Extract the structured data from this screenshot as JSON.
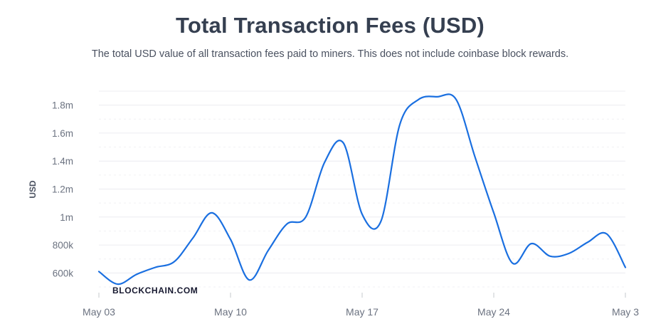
{
  "chart_data": {
    "type": "line",
    "title": "Total Transaction Fees (USD)",
    "subtitle": "The total USD value of all transaction fees paid to miners. This does not include coinbase block rewards.",
    "ylabel": "USD",
    "xlabel": "",
    "yticks": [
      "600k",
      "800k",
      "1m",
      "1.2m",
      "1.4m",
      "1.6m",
      "1.8m"
    ],
    "ytick_values": [
      600000,
      800000,
      1000000,
      1200000,
      1400000,
      1600000,
      1800000
    ],
    "xticks": [
      "May 03",
      "May 10",
      "May 17",
      "May 24",
      "May 3"
    ],
    "ylim": [
      500000,
      1900000
    ],
    "xlim": [
      "2020-05-03",
      "2020-05-31"
    ],
    "grid": true,
    "legend": "none",
    "color": "#1a6fe0",
    "series": [
      {
        "x": [
          "2020-05-03",
          "2020-05-04",
          "2020-05-05",
          "2020-05-06",
          "2020-05-07",
          "2020-05-08",
          "2020-05-09",
          "2020-05-10",
          "2020-05-11",
          "2020-05-12",
          "2020-05-13",
          "2020-05-14",
          "2020-05-15",
          "2020-05-16",
          "2020-05-17",
          "2020-05-18",
          "2020-05-19",
          "2020-05-20",
          "2020-05-21",
          "2020-05-22",
          "2020-05-23",
          "2020-05-24",
          "2020-05-25",
          "2020-05-26",
          "2020-05-27",
          "2020-05-28",
          "2020-05-29",
          "2020-05-30",
          "2020-05-31"
        ],
        "values": [
          610000,
          520000,
          590000,
          640000,
          680000,
          850000,
          1030000,
          840000,
          550000,
          760000,
          950000,
          1000000,
          1390000,
          1530000,
          1020000,
          970000,
          1660000,
          1840000,
          1860000,
          1840000,
          1430000,
          1030000,
          670000,
          810000,
          720000,
          740000,
          820000,
          880000,
          640000
        ]
      }
    ],
    "watermark": "BLOCKCHAIN.COM"
  }
}
